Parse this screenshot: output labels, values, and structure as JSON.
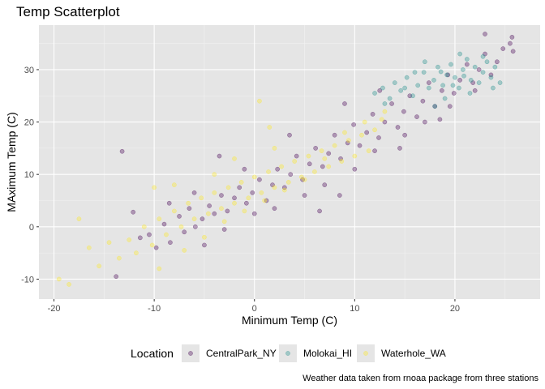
{
  "chart_data": {
    "type": "scatter",
    "title": "Temp Scatterplot",
    "xlabel": "Minimum Temp (C)",
    "ylabel": "MAximum Temp (C)",
    "caption": "Weather data taken from rnoaa package from three stations",
    "xlim": [
      -21.5,
      28.5
    ],
    "ylim": [
      -13.8,
      38.5
    ],
    "x_ticks": [
      -20,
      -10,
      0,
      10,
      20
    ],
    "x_tick_labels": [
      "-20",
      "-10",
      "0",
      "10",
      "20"
    ],
    "y_ticks": [
      -10,
      0,
      10,
      20,
      30
    ],
    "y_tick_labels": [
      "-10",
      "0",
      "10",
      "20",
      "30"
    ],
    "grid": true,
    "background": "#e5e5e5",
    "point_alpha": 0.35,
    "legend": {
      "title": "Location",
      "position": "bottom"
    },
    "series": [
      {
        "name": "CentralPark_NY",
        "color": "#440154",
        "points": [
          [
            -13.2,
            14.4
          ],
          [
            -13.8,
            -9.5
          ],
          [
            -12.1,
            2.8
          ],
          [
            -11.4,
            -2.1
          ],
          [
            -10.5,
            -1.5
          ],
          [
            -9.8,
            -4.0
          ],
          [
            -9.0,
            0.5
          ],
          [
            -8.4,
            -3.0
          ],
          [
            -7.5,
            2.0
          ],
          [
            -7.0,
            -1.0
          ],
          [
            -6.5,
            3.5
          ],
          [
            -5.9,
            0.0
          ],
          [
            -5.2,
            1.5
          ],
          [
            -4.5,
            4.0
          ],
          [
            -4.0,
            2.5
          ],
          [
            -3.3,
            6.0
          ],
          [
            -2.7,
            3.0
          ],
          [
            -2.0,
            5.5
          ],
          [
            -1.5,
            7.5
          ],
          [
            -0.8,
            4.5
          ],
          [
            -0.2,
            6.5
          ],
          [
            0.5,
            9.0
          ],
          [
            1.2,
            5.0
          ],
          [
            1.8,
            8.0
          ],
          [
            2.3,
            11.0
          ],
          [
            3.0,
            7.5
          ],
          [
            3.6,
            10.0
          ],
          [
            4.2,
            13.5
          ],
          [
            4.8,
            9.0
          ],
          [
            5.5,
            12.0
          ],
          [
            6.1,
            15.0
          ],
          [
            6.8,
            11.5
          ],
          [
            7.4,
            14.0
          ],
          [
            8.0,
            17.5
          ],
          [
            8.6,
            13.0
          ],
          [
            9.3,
            16.0
          ],
          [
            9.9,
            19.5
          ],
          [
            10.5,
            15.5
          ],
          [
            11.2,
            18.0
          ],
          [
            11.8,
            21.5
          ],
          [
            12.4,
            17.0
          ],
          [
            13.0,
            20.0
          ],
          [
            13.7,
            23.5
          ],
          [
            14.3,
            19.0
          ],
          [
            14.9,
            22.0
          ],
          [
            15.5,
            25.0
          ],
          [
            16.2,
            21.0
          ],
          [
            16.8,
            24.0
          ],
          [
            17.4,
            27.5
          ],
          [
            18.0,
            23.0
          ],
          [
            18.7,
            26.0
          ],
          [
            19.3,
            29.0
          ],
          [
            19.9,
            25.5
          ],
          [
            20.5,
            28.0
          ],
          [
            21.2,
            31.0
          ],
          [
            21.8,
            27.5
          ],
          [
            22.4,
            30.0
          ],
          [
            23.0,
            33.0
          ],
          [
            23.6,
            29.0
          ],
          [
            24.2,
            31.5
          ],
          [
            24.8,
            34.0
          ],
          [
            25.5,
            35.0
          ],
          [
            25.8,
            33.5
          ],
          [
            25.7,
            36.2
          ],
          [
            23.0,
            36.8
          ],
          [
            -5.0,
            -3.5
          ],
          [
            -3.0,
            -0.5
          ],
          [
            0.0,
            2.5
          ],
          [
            2.0,
            3.5
          ],
          [
            5.0,
            6.0
          ],
          [
            7.0,
            8.0
          ],
          [
            10.0,
            11.0
          ],
          [
            12.0,
            14.5
          ],
          [
            15.0,
            17.5
          ],
          [
            17.0,
            20.0
          ],
          [
            19.5,
            23.0
          ],
          [
            22.0,
            26.0
          ],
          [
            -1.0,
            11.0
          ],
          [
            -3.5,
            13.5
          ],
          [
            3.5,
            17.5
          ],
          [
            -8.5,
            4.5
          ],
          [
            -6.0,
            6.5
          ],
          [
            9.0,
            23.5
          ],
          [
            12.5,
            26.0
          ],
          [
            6.5,
            3.0
          ],
          [
            8.5,
            6.0
          ],
          [
            14.5,
            15.0
          ],
          [
            18.5,
            20.5
          ]
        ]
      },
      {
        "name": "Molokai_HI",
        "color": "#21908c",
        "points": [
          [
            12.0,
            25.5
          ],
          [
            12.8,
            26.5
          ],
          [
            13.5,
            24.5
          ],
          [
            14.0,
            27.5
          ],
          [
            14.6,
            26.0
          ],
          [
            15.2,
            28.5
          ],
          [
            15.8,
            25.0
          ],
          [
            16.3,
            27.0
          ],
          [
            16.9,
            29.5
          ],
          [
            17.4,
            26.5
          ],
          [
            17.9,
            28.0
          ],
          [
            18.3,
            30.5
          ],
          [
            18.8,
            27.0
          ],
          [
            19.2,
            29.0
          ],
          [
            19.6,
            31.0
          ],
          [
            20.0,
            28.5
          ],
          [
            20.4,
            26.5
          ],
          [
            20.8,
            30.0
          ],
          [
            21.2,
            32.0
          ],
          [
            21.6,
            28.0
          ],
          [
            22.0,
            30.5
          ],
          [
            22.4,
            27.5
          ],
          [
            22.8,
            29.5
          ],
          [
            23.2,
            31.5
          ],
          [
            23.6,
            28.5
          ],
          [
            24.0,
            30.5
          ],
          [
            24.5,
            27.5
          ],
          [
            19.0,
            24.5
          ],
          [
            18.0,
            23.0
          ],
          [
            20.5,
            33.0
          ],
          [
            17.0,
            31.5
          ],
          [
            21.5,
            25.5
          ],
          [
            16.0,
            29.5
          ],
          [
            15.0,
            26.5
          ],
          [
            13.0,
            23.5
          ],
          [
            22.8,
            32.5
          ],
          [
            23.8,
            26.5
          ],
          [
            19.8,
            27.0
          ],
          [
            20.9,
            28.8
          ],
          [
            18.6,
            29.6
          ]
        ]
      },
      {
        "name": "Waterhole_WA",
        "color": "#fde725",
        "points": [
          [
            -19.5,
            -10.0
          ],
          [
            -18.5,
            -11.0
          ],
          [
            -17.5,
            1.5
          ],
          [
            -16.5,
            -4.0
          ],
          [
            -15.5,
            -7.5
          ],
          [
            -14.5,
            -3.0
          ],
          [
            -13.5,
            -6.0
          ],
          [
            -12.5,
            -2.5
          ],
          [
            -11.8,
            -5.0
          ],
          [
            -11.0,
            0.0
          ],
          [
            -10.2,
            -3.5
          ],
          [
            -9.5,
            1.5
          ],
          [
            -8.8,
            -1.5
          ],
          [
            -8.0,
            3.0
          ],
          [
            -7.3,
            0.0
          ],
          [
            -6.6,
            4.5
          ],
          [
            -6.0,
            1.5
          ],
          [
            -5.3,
            5.5
          ],
          [
            -4.6,
            2.5
          ],
          [
            -4.0,
            6.5
          ],
          [
            -3.3,
            3.5
          ],
          [
            -2.6,
            7.5
          ],
          [
            -2.0,
            4.5
          ],
          [
            -1.3,
            8.5
          ],
          [
            -0.6,
            5.5
          ],
          [
            0.0,
            9.5
          ],
          [
            0.7,
            6.5
          ],
          [
            1.4,
            10.5
          ],
          [
            2.0,
            7.5
          ],
          [
            2.7,
            11.5
          ],
          [
            3.4,
            8.5
          ],
          [
            4.0,
            12.5
          ],
          [
            4.7,
            9.5
          ],
          [
            5.4,
            13.5
          ],
          [
            6.0,
            10.5
          ],
          [
            6.7,
            14.5
          ],
          [
            7.4,
            11.5
          ],
          [
            8.0,
            15.5
          ],
          [
            8.7,
            12.5
          ],
          [
            9.4,
            16.5
          ],
          [
            10.0,
            13.5
          ],
          [
            10.7,
            17.5
          ],
          [
            11.4,
            14.5
          ],
          [
            12.0,
            18.5
          ],
          [
            12.7,
            20.5
          ],
          [
            0.5,
            24.0
          ],
          [
            1.5,
            19.0
          ],
          [
            -9.5,
            -8.0
          ],
          [
            -7.0,
            -4.5
          ],
          [
            -5.0,
            -2.0
          ],
          [
            -3.0,
            1.0
          ],
          [
            -1.0,
            3.0
          ],
          [
            1.0,
            5.0
          ],
          [
            3.0,
            7.0
          ],
          [
            5.0,
            9.0
          ],
          [
            7.0,
            13.0
          ],
          [
            9.0,
            18.0
          ],
          [
            11.0,
            20.0
          ],
          [
            13.0,
            22.0
          ],
          [
            -10.0,
            7.5
          ],
          [
            -8.0,
            8.0
          ],
          [
            -4.0,
            10.0
          ],
          [
            -2.0,
            13.0
          ],
          [
            2.0,
            15.0
          ]
        ]
      }
    ]
  }
}
